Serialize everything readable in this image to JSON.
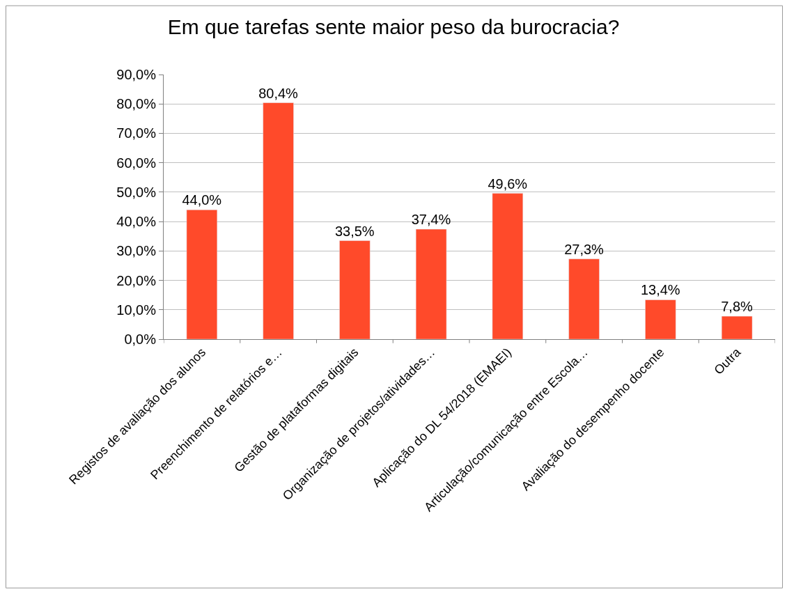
{
  "chart_data": {
    "type": "bar",
    "title": "Em que tarefas sente maior peso da burocracia?",
    "categories": [
      "Registos de avaliação dos alunos",
      "Preenchimento de relatórios e…",
      "Gestão de plataformas digitais",
      "Organização de projetos/atividades…",
      "Aplicação do DL 54/2018 (EMAEI)",
      "Articulação/comunicação entre Escola…",
      "Avaliação do desempenho docente",
      "Outra"
    ],
    "values": [
      44.0,
      80.4,
      33.5,
      37.4,
      49.6,
      27.3,
      13.4,
      7.8
    ],
    "value_labels": [
      "44,0%",
      "80,4%",
      "33,5%",
      "37,4%",
      "49,6%",
      "27,3%",
      "13,4%",
      "7,8%"
    ],
    "color": "#ff4a2a",
    "ylim": [
      0,
      90
    ],
    "yticks": [
      {
        "value": 0,
        "label": "0,0%"
      },
      {
        "value": 10,
        "label": "10,0%"
      },
      {
        "value": 20,
        "label": "20,0%"
      },
      {
        "value": 30,
        "label": "30,0%"
      },
      {
        "value": 40,
        "label": "40,0%"
      },
      {
        "value": 50,
        "label": "50,0%"
      },
      {
        "value": 60,
        "label": "60,0%"
      },
      {
        "value": 70,
        "label": "70,0%"
      },
      {
        "value": 80,
        "label": "80,0%"
      },
      {
        "value": 90,
        "label": "90,0%"
      }
    ],
    "grid": "y"
  }
}
